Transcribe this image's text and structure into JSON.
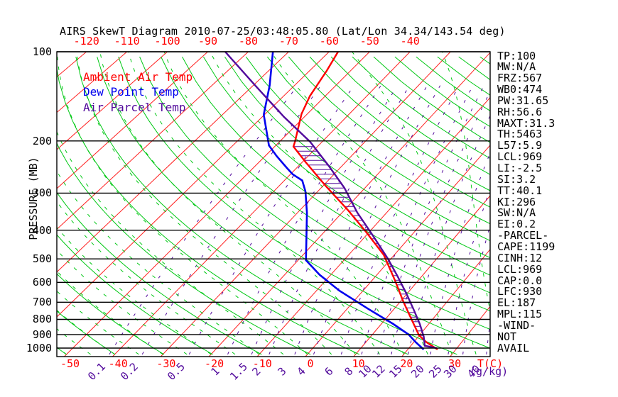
{
  "title": "AIRS SkewT Diagram 2010-07-25/03:48:05.80 (Lat/Lon 34.34/143.54 deg)",
  "colors": {
    "ambient_red": "#ff0000",
    "dewpoint_blue": "#0000ee",
    "parcel_purple": "#520a9c",
    "dry_adiabat_green": "#00c814",
    "moist_adiabat_green": "#00c814",
    "mixing_ratio_purple": "#520a9c",
    "isotherm_red": "#ff2020",
    "axis_black": "#000000"
  },
  "legend": {
    "ambient": "Ambient Air Temp",
    "dew": "Dew Point Temp",
    "parcel": "Air Parcel Temp"
  },
  "axes": {
    "pressure_label": "PRESSURE (MB)",
    "pressure_ticks": [
      100,
      200,
      300,
      400,
      500,
      600,
      700,
      800,
      900,
      1000
    ],
    "top_temp_ticks": [
      -120,
      -110,
      -100,
      -90,
      -80,
      -70,
      -60,
      -50,
      -40
    ],
    "bottom_temp_ticks": [
      -50,
      -40,
      -30,
      -20,
      -10,
      0,
      10,
      20,
      30
    ],
    "mixing_ratio_ticks": [
      0.1,
      0.2,
      0.5,
      1,
      1.5,
      2,
      3,
      4,
      6,
      8,
      10,
      12,
      15,
      20,
      25,
      30,
      40
    ],
    "temp_unit": "T(C)",
    "mixing_unit": "(g/kg)"
  },
  "stats": [
    "TP:100",
    "MW:N/A",
    "FRZ:567",
    "WB0:474",
    "PW:31.65",
    "RH:56.6",
    "MAXT:31.3",
    "TH:5463",
    "L57:5.9",
    "LCL:969",
    "LI:-2.5",
    "SI:3.2",
    "TT:40.1",
    "KI:296",
    "SW:N/A",
    "EI:0.2",
    "-PARCEL-",
    "CAPE:1199",
    "CINH:12",
    "LCL:969",
    "CAP:0.0",
    "LFC:930",
    "EL:187",
    "MPL:115",
    "-WIND-",
    "NOT",
    "AVAIL"
  ],
  "chart_data": {
    "type": "skewt",
    "title": "AIRS SkewT Diagram 2010-07-25/03:48:05.80 (Lat/Lon 34.34/143.54 deg)",
    "pressure_axis": {
      "min": 100,
      "max": 1050,
      "scale": "log",
      "unit": "MB"
    },
    "temp_axis": {
      "unit": "C",
      "bottom_range": [
        -50,
        30
      ],
      "top_range": [
        -120,
        -40
      ]
    },
    "grid": {
      "isotherms_c": [
        -160,
        -150,
        -140,
        -130,
        -120,
        -110,
        -100,
        -90,
        -80,
        -70,
        -60,
        -50,
        -40,
        -30,
        -20,
        -10,
        0,
        10,
        20,
        30,
        40
      ],
      "dry_adiabats_theta_k": {
        "start": 220,
        "end": 500,
        "step": 10
      },
      "moist_adiabats_start_c": {
        "start": -60,
        "end": 45,
        "step": 5
      },
      "mixing_ratio_g_kg": [
        0.1,
        0.2,
        0.5,
        1,
        1.5,
        2,
        3,
        4,
        6,
        8,
        10,
        12,
        15,
        20,
        25,
        30,
        40
      ]
    },
    "series": [
      {
        "name": "Ambient Air Temp",
        "color": "#ff0000",
        "width": 2.4,
        "points_p_t": [
          [
            100,
            -57.8
          ],
          [
            116,
            -55.8
          ],
          [
            141,
            -53.7
          ],
          [
            162,
            -51.4
          ],
          [
            201,
            -46.4
          ],
          [
            209,
            -45.6
          ],
          [
            235,
            -39.4
          ],
          [
            283,
            -29.5
          ],
          [
            343,
            -19.1
          ],
          [
            405,
            -10.8
          ],
          [
            485,
            -2.3
          ],
          [
            590,
            4.9
          ],
          [
            696,
            10.6
          ],
          [
            806,
            15.8
          ],
          [
            905,
            19.9
          ],
          [
            955,
            22.6
          ],
          [
            1011,
            26.2
          ]
        ]
      },
      {
        "name": "Dew Point Temp",
        "color": "#0000ee",
        "width": 2.6,
        "points_p_t": [
          [
            100,
            -73.9
          ],
          [
            130,
            -66.0
          ],
          [
            153,
            -61.8
          ],
          [
            163,
            -60.2
          ],
          [
            207,
            -51.6
          ],
          [
            225,
            -47.3
          ],
          [
            246,
            -42.4
          ],
          [
            259,
            -39.5
          ],
          [
            272,
            -35.9
          ],
          [
            296,
            -32.8
          ],
          [
            349,
            -27.9
          ],
          [
            505,
            -18.3
          ],
          [
            566,
            -12.4
          ],
          [
            640,
            -5.1
          ],
          [
            742,
            4.9
          ],
          [
            829,
            12.5
          ],
          [
            900,
            17.6
          ],
          [
            955,
            20.4
          ],
          [
            1011,
            23.3
          ]
        ]
      },
      {
        "name": "Air Parcel Temp",
        "color": "#520a9c",
        "width": 2.4,
        "points_p_t": [
          [
            100,
            -85.7
          ],
          [
            130,
            -69.5
          ],
          [
            166,
            -54.8
          ],
          [
            201,
            -42.9
          ],
          [
            244,
            -32.8
          ],
          [
            288,
            -24.7
          ],
          [
            349,
            -16.6
          ],
          [
            418,
            -8.4
          ],
          [
            498,
            -0.8
          ],
          [
            573,
            4.8
          ],
          [
            652,
            9.7
          ],
          [
            742,
            14.3
          ],
          [
            829,
            18.1
          ],
          [
            914,
            21.1
          ],
          [
            982,
            22.9
          ],
          [
            1000,
            25.8
          ]
        ]
      }
    ],
    "cape_hatch": {
      "between": [
        "Ambient Air Temp",
        "Air Parcel Temp"
      ],
      "pressure_range_mb": [
        209,
        930
      ]
    },
    "indices": {
      "TP": 100,
      "MW": "N/A",
      "FRZ": 567,
      "WB0": 474,
      "PW": 31.65,
      "RH": 56.6,
      "MAXT": 31.3,
      "TH": 5463,
      "L57": 5.9,
      "LCL": 969,
      "LI": -2.5,
      "SI": 3.2,
      "TT": 40.1,
      "KI": 296,
      "SW": "N/A",
      "EI": 0.2,
      "CAPE": 1199,
      "CINH": 12,
      "LCL_parcel": 969,
      "CAP": 0.0,
      "LFC": 930,
      "EL": 187,
      "MPL": 115,
      "WIND": "NOT AVAIL"
    }
  }
}
